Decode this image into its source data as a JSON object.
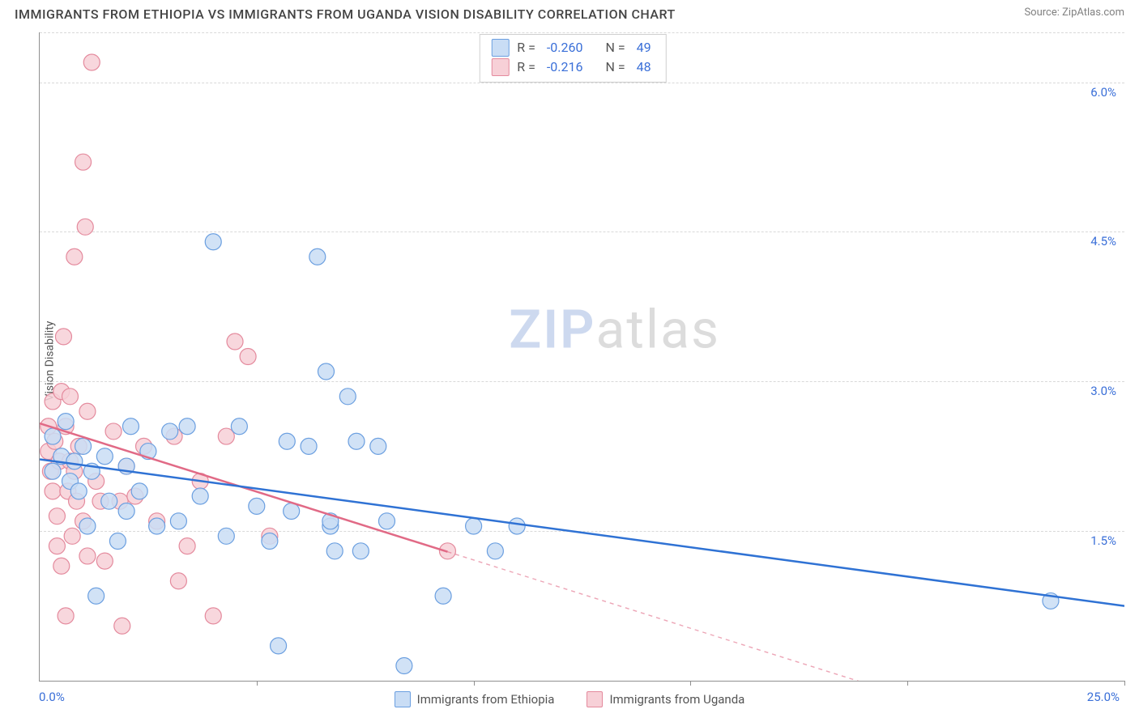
{
  "title": "IMMIGRANTS FROM ETHIOPIA VS IMMIGRANTS FROM UGANDA VISION DISABILITY CORRELATION CHART",
  "source_label": "Source:",
  "source_name": "ZipAtlas.com",
  "watermark_zip": "ZIP",
  "watermark_atlas": "atlas",
  "y_axis_label": "Vision Disability",
  "chart": {
    "type": "scatter",
    "background_color": "#ffffff",
    "grid_color": "#d9d9d9",
    "axis_color": "#8f8f8f",
    "label_color": "#3a6fd8",
    "xlim": [
      0,
      25
    ],
    "ylim": [
      0,
      6.5
    ],
    "x_ticks": [
      0,
      5,
      10,
      15,
      20,
      25
    ],
    "x_origin_label": "0.0%",
    "x_max_label": "25.0%",
    "y_ticks": [
      {
        "v": 1.5,
        "label": "1.5%"
      },
      {
        "v": 3.0,
        "label": "3.0%"
      },
      {
        "v": 4.5,
        "label": "4.5%"
      },
      {
        "v": 6.0,
        "label": "6.0%"
      }
    ],
    "series": [
      {
        "name": "Immigrants from Ethiopia",
        "fill": "#c9ddf5",
        "stroke": "#6b9fe0",
        "line_color": "#2f72d4",
        "marker_radius": 10,
        "marker_opacity": 0.85,
        "R": "-0.260",
        "N": "49",
        "trend": {
          "x1": 0.0,
          "y1": 2.22,
          "x2": 25.0,
          "y2": 0.75,
          "solid_until_x": 25.0
        },
        "points": [
          [
            0.3,
            2.1
          ],
          [
            0.3,
            2.45
          ],
          [
            0.5,
            2.25
          ],
          [
            0.6,
            2.6
          ],
          [
            0.7,
            2.0
          ],
          [
            0.8,
            2.2
          ],
          [
            0.9,
            1.9
          ],
          [
            1.0,
            2.35
          ],
          [
            1.1,
            1.55
          ],
          [
            1.2,
            2.1
          ],
          [
            1.3,
            0.85
          ],
          [
            1.5,
            2.25
          ],
          [
            1.6,
            1.8
          ],
          [
            1.8,
            1.4
          ],
          [
            2.0,
            2.15
          ],
          [
            2.0,
            1.7
          ],
          [
            2.1,
            2.55
          ],
          [
            2.3,
            1.9
          ],
          [
            2.5,
            2.3
          ],
          [
            2.7,
            1.55
          ],
          [
            3.0,
            2.5
          ],
          [
            3.2,
            1.6
          ],
          [
            3.4,
            2.55
          ],
          [
            3.7,
            1.85
          ],
          [
            4.0,
            4.4
          ],
          [
            4.3,
            1.45
          ],
          [
            4.6,
            2.55
          ],
          [
            5.0,
            1.75
          ],
          [
            5.3,
            1.4
          ],
          [
            5.5,
            0.35
          ],
          [
            5.7,
            2.4
          ],
          [
            5.8,
            1.7
          ],
          [
            6.2,
            2.35
          ],
          [
            6.4,
            4.25
          ],
          [
            6.6,
            3.1
          ],
          [
            6.7,
            1.55
          ],
          [
            6.7,
            1.6
          ],
          [
            6.8,
            1.3
          ],
          [
            7.1,
            2.85
          ],
          [
            7.3,
            2.4
          ],
          [
            7.4,
            1.3
          ],
          [
            7.8,
            2.35
          ],
          [
            8.0,
            1.6
          ],
          [
            8.4,
            0.15
          ],
          [
            9.3,
            0.85
          ],
          [
            10.0,
            1.55
          ],
          [
            10.5,
            1.3
          ],
          [
            11.0,
            1.55
          ],
          [
            23.3,
            0.8
          ]
        ]
      },
      {
        "name": "Immigrants from Uganda",
        "fill": "#f7d0d7",
        "stroke": "#e48a9d",
        "line_color": "#e16a86",
        "marker_radius": 10,
        "marker_opacity": 0.85,
        "R": "-0.216",
        "N": "48",
        "trend": {
          "x1": 0.0,
          "y1": 2.58,
          "x2": 20.3,
          "y2": -0.2,
          "solid_until_x": 9.4
        },
        "points": [
          [
            0.2,
            2.55
          ],
          [
            0.2,
            2.3
          ],
          [
            0.25,
            2.1
          ],
          [
            0.3,
            1.9
          ],
          [
            0.3,
            2.8
          ],
          [
            0.35,
            2.4
          ],
          [
            0.4,
            1.35
          ],
          [
            0.4,
            1.65
          ],
          [
            0.45,
            2.2
          ],
          [
            0.5,
            2.9
          ],
          [
            0.5,
            1.15
          ],
          [
            0.55,
            3.45
          ],
          [
            0.6,
            2.55
          ],
          [
            0.6,
            0.65
          ],
          [
            0.65,
            1.9
          ],
          [
            0.7,
            2.2
          ],
          [
            0.7,
            2.85
          ],
          [
            0.75,
            1.45
          ],
          [
            0.8,
            2.1
          ],
          [
            0.8,
            4.25
          ],
          [
            0.85,
            1.8
          ],
          [
            0.9,
            2.35
          ],
          [
            1.0,
            5.2
          ],
          [
            1.0,
            1.6
          ],
          [
            1.05,
            4.55
          ],
          [
            1.1,
            2.7
          ],
          [
            1.1,
            1.25
          ],
          [
            1.2,
            6.2
          ],
          [
            1.3,
            2.0
          ],
          [
            1.4,
            1.8
          ],
          [
            1.5,
            1.2
          ],
          [
            1.7,
            2.5
          ],
          [
            1.85,
            1.8
          ],
          [
            1.9,
            0.55
          ],
          [
            2.0,
            2.15
          ],
          [
            2.2,
            1.85
          ],
          [
            2.4,
            2.35
          ],
          [
            2.7,
            1.6
          ],
          [
            3.1,
            2.45
          ],
          [
            3.2,
            1.0
          ],
          [
            3.4,
            1.35
          ],
          [
            3.7,
            2.0
          ],
          [
            4.0,
            0.65
          ],
          [
            4.3,
            2.45
          ],
          [
            4.5,
            3.4
          ],
          [
            4.8,
            3.25
          ],
          [
            5.3,
            1.45
          ],
          [
            9.4,
            1.3
          ]
        ]
      }
    ],
    "stats_labels": {
      "R": "R =",
      "N": "N ="
    }
  },
  "title_fontsize": 16,
  "tick_fontsize": 15
}
